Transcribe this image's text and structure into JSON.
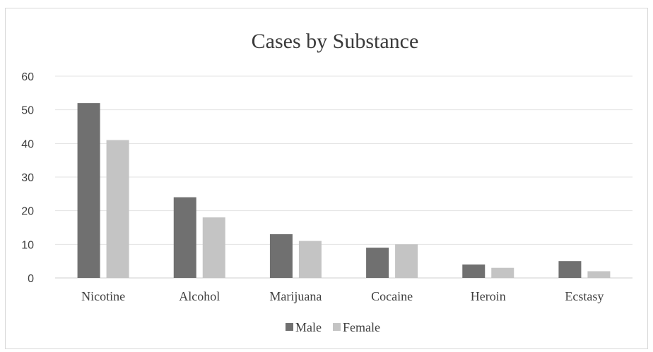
{
  "chart_data": {
    "type": "bar",
    "title": "Cases by Substance",
    "xlabel": "",
    "ylabel": "",
    "ylim": [
      0,
      60
    ],
    "yticks": [
      0,
      10,
      20,
      30,
      40,
      50,
      60
    ],
    "grid": true,
    "legend_position": "bottom",
    "categories": [
      "Nicotine",
      "Alcohol",
      "Marijuana",
      "Cocaine",
      "Heroin",
      "Ecstasy"
    ],
    "series": [
      {
        "name": "Male",
        "color": "#707070",
        "values": [
          52,
          24,
          13,
          9,
          4,
          5
        ]
      },
      {
        "name": "Female",
        "color": "#c4c4c4",
        "values": [
          41,
          18,
          11,
          10,
          3,
          2
        ]
      }
    ]
  }
}
